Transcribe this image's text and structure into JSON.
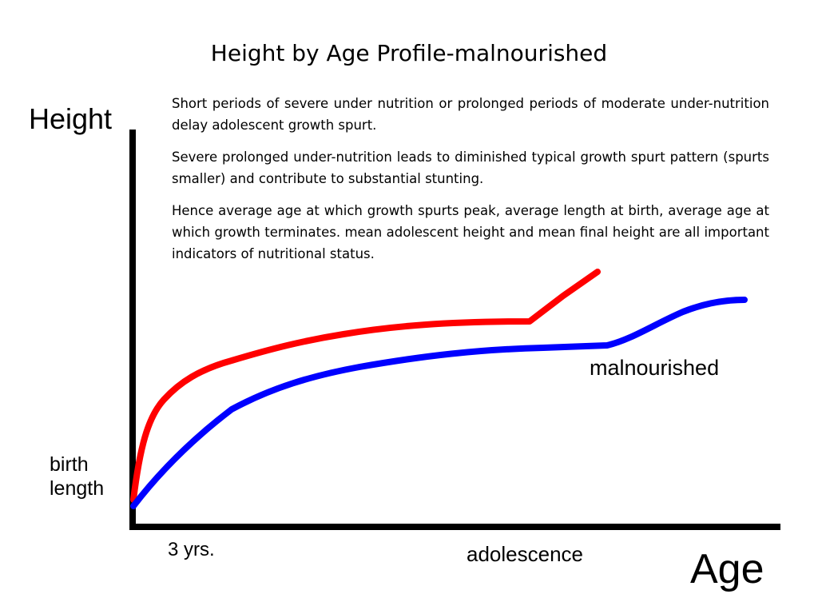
{
  "title": "Height by Age Profile-malnourished",
  "paragraphs": [
    "Short periods of severe under nutrition or prolonged periods of moderate under-nutrition delay adolescent growth spurt.",
    "Severe prolonged under-nutrition leads to diminished typical growth spurt pattern (spurts smaller) and contribute to substantial stunting.",
    "Hence average age at which growth spurts peak, average length at birth, average age at which growth terminates. mean adolescent height and mean final height are all important indicators of nutritional status."
  ],
  "axes": {
    "y_label": "Height",
    "x_label": "Age",
    "y_marker": "birth\nlength",
    "x_markers": [
      "3 yrs.",
      "adolescence"
    ]
  },
  "curves": [
    {
      "label": "",
      "color": "#ff0000"
    },
    {
      "label": "malnourished",
      "color": "#0000ff"
    }
  ],
  "colors": {
    "axis": "#000000",
    "text": "#000000",
    "background": "#ffffff"
  }
}
